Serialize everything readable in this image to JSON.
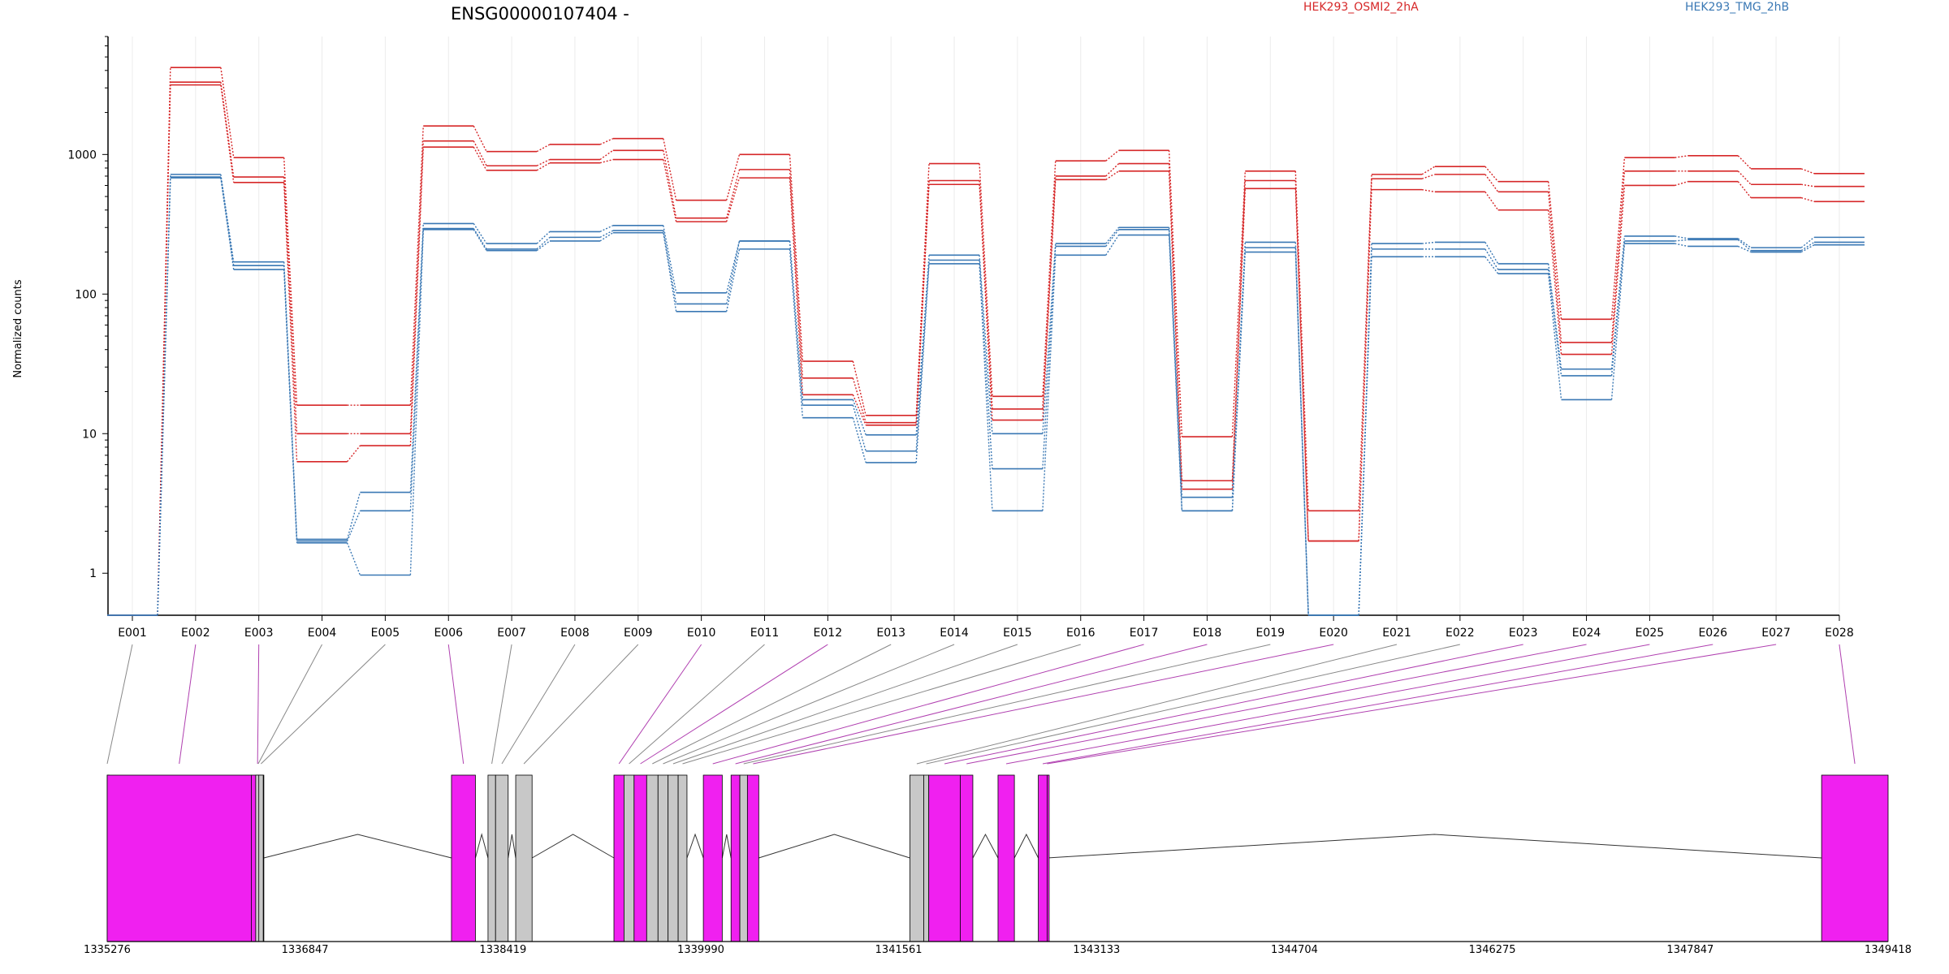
{
  "chart_data": {
    "type": "line",
    "title": "ENSG00000107404 -",
    "ylabel": "Normalized counts",
    "xlabel": "",
    "y_scale": "log",
    "y_ticks": [
      1,
      10,
      100,
      1000
    ],
    "y_tick_labels": [
      "1",
      "10",
      "100",
      "1000"
    ],
    "ylim": [
      0.5,
      7000
    ],
    "grid": "vertical gridlines at exons",
    "legend_placement": "top-right",
    "categories": [
      "E001",
      "E002",
      "E003",
      "E004",
      "E005",
      "E006",
      "E007",
      "E008",
      "E009",
      "E010",
      "E011",
      "E012",
      "E013",
      "E014",
      "E015",
      "E016",
      "E017",
      "E018",
      "E019",
      "E020",
      "E021",
      "E022",
      "E023",
      "E024",
      "E025",
      "E026",
      "E027",
      "E028"
    ],
    "colors": {
      "HEK293_OSMI2_2hA": "#d62728",
      "HEK293_TMG_2hB": "#3a78b4",
      "exon_highlight": "#f020f0",
      "exon_other": "#c8c8c8"
    },
    "legend": [
      {
        "label": "HEK293_OSMI2_2hA",
        "color": "#d62728"
      },
      {
        "label": "HEK293_TMG_2hB",
        "color": "#3a78b4"
      }
    ],
    "series": [
      {
        "group": "HEK293_OSMI2_2hA",
        "color": "#d62728",
        "values": [
          0.5,
          4200,
          950,
          16,
          16,
          1600,
          1050,
          1180,
          1300,
          470,
          1000,
          33,
          13.5,
          860,
          18.5,
          900,
          1070,
          9.5,
          760,
          2.8,
          720,
          820,
          640,
          66,
          950,
          980,
          790,
          730
        ]
      },
      {
        "group": "HEK293_OSMI2_2hA",
        "color": "#d62728",
        "values": [
          0.5,
          3300,
          690,
          10,
          10,
          1250,
          830,
          920,
          1070,
          350,
          780,
          25,
          12,
          650,
          15,
          700,
          860,
          4.6,
          650,
          1.7,
          670,
          720,
          540,
          45,
          760,
          760,
          610,
          590
        ]
      },
      {
        "group": "HEK293_OSMI2_2hA",
        "color": "#d62728",
        "values": [
          0.5,
          3150,
          630,
          6.3,
          8.2,
          1130,
          770,
          870,
          920,
          330,
          680,
          19,
          11.5,
          610,
          12.5,
          660,
          760,
          4.0,
          570,
          1.7,
          560,
          540,
          400,
          37,
          600,
          640,
          490,
          460
        ]
      },
      {
        "group": "HEK293_TMG_2hB",
        "color": "#3a78b4",
        "values": [
          0.5,
          720,
          170,
          1.75,
          3.8,
          320,
          230,
          280,
          310,
          102,
          240,
          17.5,
          9.8,
          190,
          10,
          230,
          300,
          3.5,
          235,
          0.5,
          230,
          235,
          165,
          29,
          260,
          250,
          215,
          255
        ]
      },
      {
        "group": "HEK293_TMG_2hB",
        "color": "#3a78b4",
        "values": [
          0.5,
          690,
          160,
          1.7,
          2.8,
          295,
          210,
          255,
          285,
          85,
          240,
          16,
          7.5,
          175,
          5.6,
          220,
          290,
          2.8,
          215,
          0.5,
          210,
          210,
          150,
          26,
          240,
          245,
          205,
          235
        ]
      },
      {
        "group": "HEK293_TMG_2hB",
        "color": "#3a78b4",
        "values": [
          0.5,
          680,
          150,
          1.65,
          0.97,
          290,
          205,
          240,
          275,
          75,
          210,
          13,
          6.2,
          165,
          2.8,
          190,
          265,
          2.8,
          200,
          0.5,
          185,
          185,
          140,
          17.5,
          230,
          220,
          200,
          225
        ]
      }
    ],
    "exon_rows": [
      {
        "exon": "E001",
        "start": 1335276,
        "end": 1335276,
        "highlight": false
      },
      {
        "exon": "E002",
        "start": 1335276,
        "end": 1336420,
        "highlight": true
      },
      {
        "exon": "E003",
        "start": 1336420,
        "end": 1336520,
        "highlight": true
      },
      {
        "exon": "E004",
        "start": 1336455,
        "end": 1336495,
        "highlight": false
      },
      {
        "exon": "E005",
        "start": 1336480,
        "end": 1336515,
        "highlight": false
      },
      {
        "exon": "E006",
        "start": 1338010,
        "end": 1338200,
        "highlight": true
      },
      {
        "exon": "E007",
        "start": 1338300,
        "end": 1338360,
        "highlight": false
      },
      {
        "exon": "E008",
        "start": 1338360,
        "end": 1338460,
        "highlight": false
      },
      {
        "exon": "E009",
        "start": 1338520,
        "end": 1338650,
        "highlight": false
      },
      {
        "exon": "E010",
        "start": 1339300,
        "end": 1339380,
        "highlight": true
      },
      {
        "exon": "E011",
        "start": 1339380,
        "end": 1339460,
        "highlight": false
      },
      {
        "exon": "E012",
        "start": 1339460,
        "end": 1339560,
        "highlight": true
      },
      {
        "exon": "E013",
        "start": 1339560,
        "end": 1339650,
        "highlight": false
      },
      {
        "exon": "E014",
        "start": 1339650,
        "end": 1339730,
        "highlight": false
      },
      {
        "exon": "E015",
        "start": 1339730,
        "end": 1339810,
        "highlight": false
      },
      {
        "exon": "E016",
        "start": 1339810,
        "end": 1339880,
        "highlight": false
      },
      {
        "exon": "E017",
        "start": 1340010,
        "end": 1340160,
        "highlight": true
      },
      {
        "exon": "E018",
        "start": 1340230,
        "end": 1340300,
        "highlight": true
      },
      {
        "exon": "E019",
        "start": 1340300,
        "end": 1340360,
        "highlight": false
      },
      {
        "exon": "E020",
        "start": 1340360,
        "end": 1340450,
        "highlight": true
      },
      {
        "exon": "E021",
        "start": 1341650,
        "end": 1341760,
        "highlight": false
      },
      {
        "exon": "E022",
        "start": 1341760,
        "end": 1341800,
        "highlight": false
      },
      {
        "exon": "E023",
        "start": 1341800,
        "end": 1342050,
        "highlight": true
      },
      {
        "exon": "E024",
        "start": 1342050,
        "end": 1342150,
        "highlight": true
      },
      {
        "exon": "E025",
        "start": 1342350,
        "end": 1342480,
        "highlight": true
      },
      {
        "exon": "E026",
        "start": 1342670,
        "end": 1342740,
        "highlight": true
      },
      {
        "exon": "E027",
        "start": 1342740,
        "end": 1342740,
        "highlight": true
      },
      {
        "exon": "E028",
        "start": 1348890,
        "end": 1349418,
        "highlight": true
      }
    ],
    "genomic_axis": {
      "range": [
        1335276,
        1349418
      ],
      "ticks": [
        1335276,
        1336847,
        1338419,
        1339990,
        1341561,
        1343133,
        1344704,
        1346275,
        1347847,
        1349418
      ],
      "tick_labels": [
        "1335276",
        "1336847",
        "1338419",
        "1339990",
        "1341561",
        "1343133",
        "1344704",
        "1346275",
        "1347847",
        "1349418"
      ]
    }
  }
}
